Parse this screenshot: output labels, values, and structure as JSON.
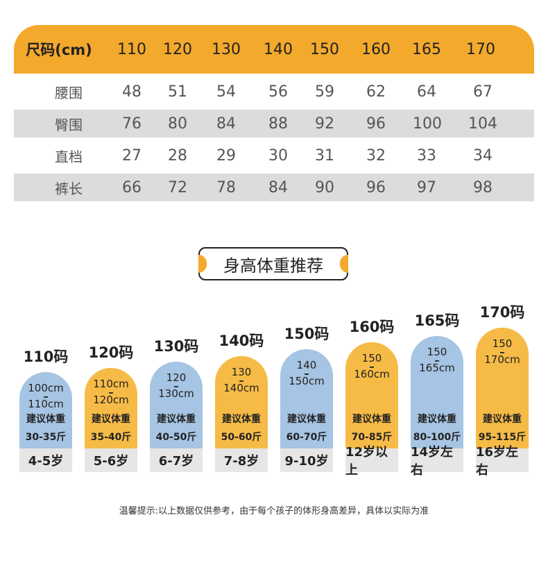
{
  "size_table": {
    "header": [
      "尺码(cm)",
      "110",
      "120",
      "130",
      "140",
      "150",
      "160",
      "165",
      "170"
    ],
    "rows": [
      [
        "腰围",
        "48",
        "51",
        "54",
        "56",
        "59",
        "62",
        "64",
        "67"
      ],
      [
        "臀围",
        "76",
        "80",
        "84",
        "88",
        "92",
        "96",
        "100",
        "104"
      ],
      [
        "直档",
        "27",
        "28",
        "29",
        "30",
        "31",
        "32",
        "33",
        "34"
      ],
      [
        "裤长",
        "66",
        "72",
        "78",
        "84",
        "90",
        "96",
        "97",
        "98"
      ]
    ]
  },
  "recommendation": {
    "title": "身高体重推荐",
    "weight_label": "建议体重",
    "columns": [
      {
        "size": "110码",
        "height_from": "100cm",
        "height_to": "110cm",
        "weight": "30-35斤",
        "age": "4-5岁",
        "color": "blue"
      },
      {
        "size": "120码",
        "height_from": "110cm",
        "height_to": "120cm",
        "weight": "35-40斤",
        "age": "5-6岁",
        "color": "orange"
      },
      {
        "size": "130码",
        "height_from": "120",
        "height_to": "130cm",
        "weight": "40-50斤",
        "age": "6-7岁",
        "color": "blue"
      },
      {
        "size": "140码",
        "height_from": "130",
        "height_to": "140cm",
        "weight": "50-60斤",
        "age": "7-8岁",
        "color": "orange"
      },
      {
        "size": "150码",
        "height_from": "140",
        "height_to": "150cm",
        "weight": "60-70斤",
        "age": "9-10岁",
        "color": "blue"
      },
      {
        "size": "160码",
        "height_from": "150",
        "height_to": "160cm",
        "weight": "70-85斤",
        "age": "12岁以上",
        "color": "orange"
      },
      {
        "size": "165码",
        "height_from": "150",
        "height_to": "165cm",
        "weight": "80-100斤",
        "age": "14岁左右",
        "color": "blue"
      },
      {
        "size": "170码",
        "height_from": "150",
        "height_to": "170cm",
        "weight": "95-115斤",
        "age": "16岁左右",
        "color": "orange"
      }
    ]
  },
  "footnote": "温馨提示:以上数据仅供参考，由于每个孩子的体形身高差异，具体以实际为准",
  "colors": {
    "accent_orange": "#f3a92c",
    "pill_orange": "#f6bb46",
    "pill_blue": "#a6c4e3",
    "row_shade": "#dcdcdc"
  }
}
